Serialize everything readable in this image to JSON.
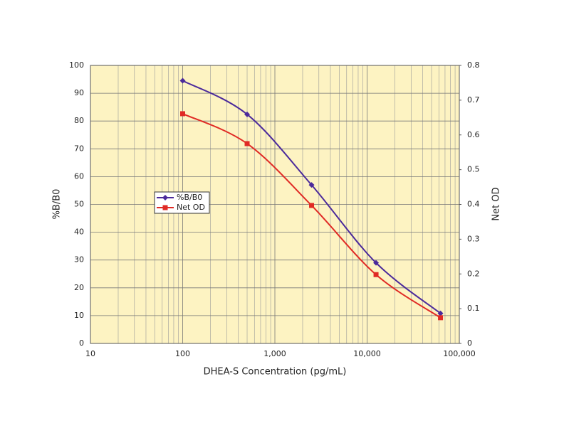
{
  "chart_data": {
    "type": "line",
    "x_label": "DHEA-S Concentration (pg/mL)",
    "y_label": "%B/B0",
    "y2_label": "Net OD",
    "x": [
      100,
      500,
      2500,
      12500,
      62500
    ],
    "series": [
      {
        "name": "%B/B0",
        "color": "#4b2a9b",
        "marker": "diamond",
        "values": [
          94.5,
          82.4,
          57,
          29,
          10.8
        ]
      },
      {
        "name": "Net OD",
        "color": "#e02a25",
        "marker": "square",
        "axis": "y2",
        "values": [
          0.661,
          0.575,
          0.397,
          0.198,
          0.074
        ]
      }
    ],
    "xscale": "log",
    "xlim": [
      10,
      100000
    ],
    "xticks": [
      10,
      100,
      {
        "value": 1000,
        "label": "1,000"
      },
      {
        "value": 10000,
        "label": "10,000"
      },
      {
        "value": 100000,
        "label": "100,000"
      }
    ],
    "ylim": [
      0,
      100
    ],
    "yticks": [
      0,
      10,
      20,
      30,
      40,
      50,
      60,
      70,
      80,
      90,
      100
    ],
    "y2lim": [
      0,
      0.8
    ],
    "y2ticks": [
      0,
      0.1,
      0.2,
      0.3,
      0.4,
      0.5,
      0.6,
      0.7,
      0.8
    ],
    "grid": true,
    "plot_background": "#fdf3c2",
    "legend": "left"
  }
}
